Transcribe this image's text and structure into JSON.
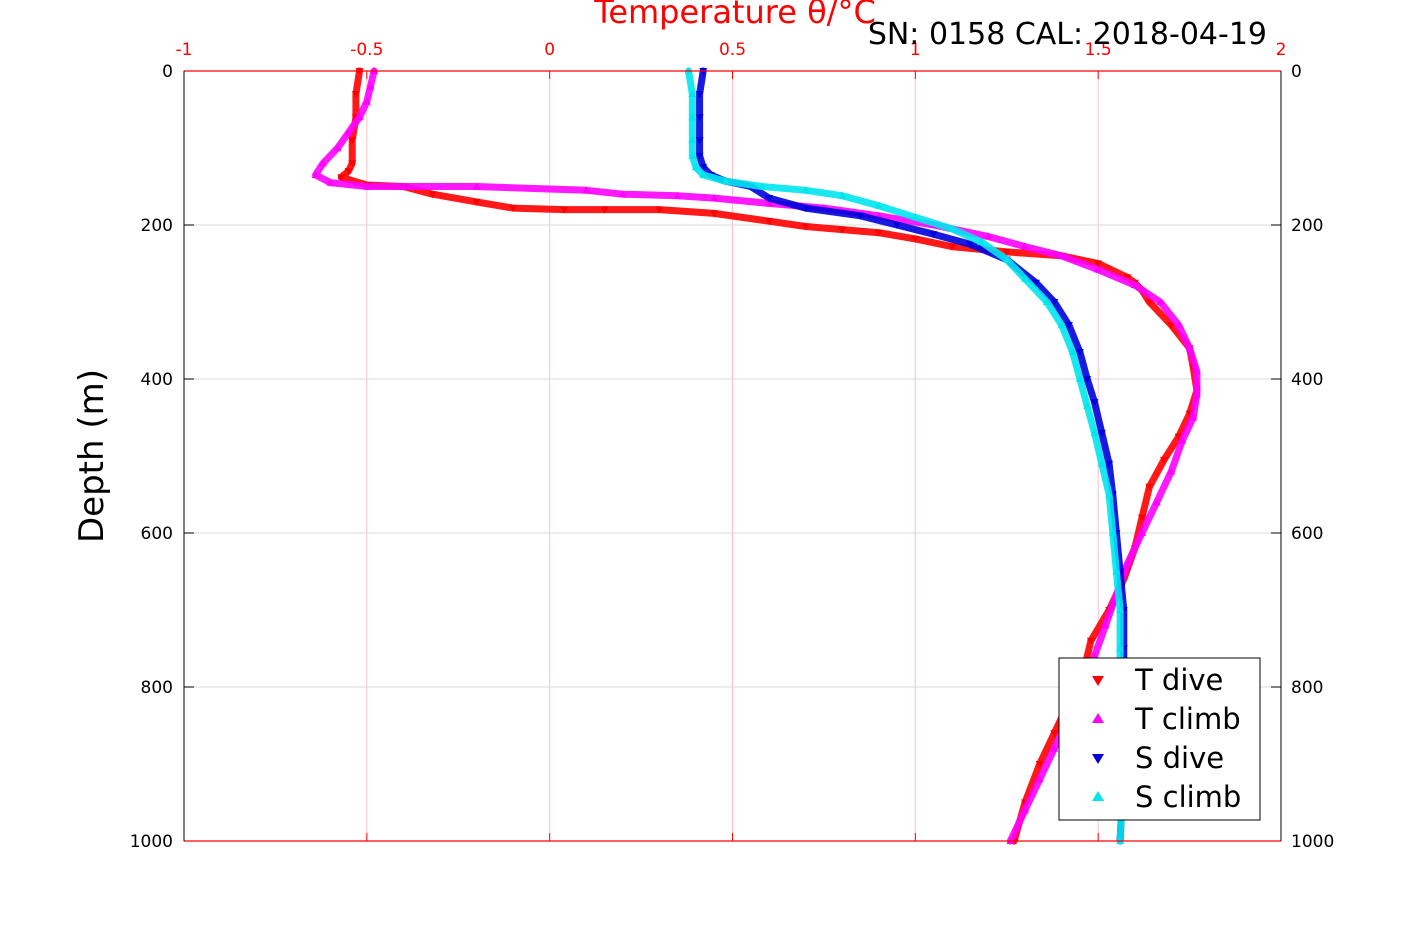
{
  "chart_data": {
    "type": "scatter",
    "title": "",
    "header": "SN: 0158  CAL: 2018-04-19",
    "xlabel": "Temperature θ/°C",
    "ylabel": "Depth (m)",
    "xlim": [
      -1,
      2
    ],
    "ylim": [
      0,
      1000
    ],
    "y_reversed": true,
    "x_ticks": [
      "-1",
      "-0.5",
      "0",
      "0.5",
      "1",
      "1.5",
      "2"
    ],
    "y_ticks": [
      "0",
      "200",
      "400",
      "600",
      "800",
      "1000"
    ],
    "grid": true,
    "legend_position": "bottom-right",
    "colors": {
      "axis_top": "#ff0000",
      "grid": "#ffc0cb",
      "ygrid": "#d9d9d9"
    },
    "series": [
      {
        "name": "T dive",
        "color": "#ff0000",
        "marker": "triangle-down",
        "x": [
          -0.52,
          -0.53,
          -0.53,
          -0.54,
          -0.54,
          -0.55,
          -0.57,
          -0.5,
          -0.4,
          -0.32,
          -0.2,
          -0.1,
          0.04,
          0.15,
          0.3,
          0.45,
          0.6,
          0.7,
          0.8,
          0.9,
          1.0,
          1.1,
          1.25,
          1.4,
          1.5,
          1.58,
          1.6,
          1.62,
          1.64,
          1.7,
          1.75,
          1.76,
          1.77,
          1.75,
          1.72,
          1.68,
          1.64,
          1.62,
          1.6,
          1.57,
          1.53,
          1.48,
          1.46,
          1.42,
          1.38,
          1.34,
          1.3,
          1.27
        ],
        "y": [
          0,
          30,
          60,
          90,
          120,
          130,
          138,
          148,
          150,
          160,
          170,
          178,
          180,
          180,
          180,
          185,
          195,
          202,
          206,
          210,
          218,
          228,
          235,
          240,
          250,
          268,
          275,
          285,
          300,
          330,
          360,
          385,
          415,
          445,
          475,
          505,
          540,
          580,
          620,
          660,
          700,
          740,
          780,
          820,
          860,
          900,
          950,
          1000
        ]
      },
      {
        "name": "T climb",
        "color": "#ff00ff",
        "marker": "triangle-up",
        "x": [
          -0.48,
          -0.49,
          -0.5,
          -0.52,
          -0.55,
          -0.58,
          -0.62,
          -0.64,
          -0.6,
          -0.5,
          -0.2,
          0.1,
          0.2,
          0.35,
          0.45,
          0.6,
          0.75,
          0.9,
          1.05,
          1.2,
          1.3,
          1.4,
          1.5,
          1.6,
          1.67,
          1.72,
          1.75,
          1.77,
          1.77,
          1.76,
          1.73,
          1.7,
          1.66,
          1.62,
          1.58,
          1.55,
          1.52,
          1.49,
          1.46,
          1.42,
          1.38,
          1.34,
          1.3,
          1.26
        ],
        "y": [
          0,
          20,
          40,
          60,
          80,
          100,
          120,
          135,
          145,
          150,
          150,
          155,
          160,
          162,
          165,
          172,
          178,
          188,
          200,
          215,
          228,
          240,
          258,
          278,
          300,
          330,
          360,
          390,
          420,
          450,
          480,
          520,
          560,
          600,
          640,
          680,
          720,
          760,
          800,
          840,
          880,
          920,
          960,
          1000
        ]
      },
      {
        "name": "S dive",
        "color": "#0000dd",
        "marker": "triangle-down",
        "x": [
          0.42,
          0.41,
          0.41,
          0.41,
          0.41,
          0.42,
          0.44,
          0.48,
          0.55,
          0.6,
          0.7,
          0.85,
          0.95,
          1.05,
          1.15,
          1.25,
          1.33,
          1.38,
          1.42,
          1.45,
          1.47,
          1.49,
          1.51,
          1.53,
          1.54,
          1.55,
          1.56,
          1.57,
          1.57,
          1.57,
          1.57,
          1.57,
          1.56
        ],
        "y": [
          0,
          30,
          60,
          90,
          110,
          125,
          135,
          143,
          150,
          165,
          178,
          188,
          200,
          212,
          225,
          245,
          275,
          300,
          330,
          365,
          400,
          430,
          470,
          510,
          550,
          600,
          650,
          700,
          750,
          800,
          850,
          900,
          1000
        ]
      },
      {
        "name": "S climb",
        "color": "#00e5ee",
        "marker": "triangle-up",
        "x": [
          0.38,
          0.39,
          0.39,
          0.39,
          0.39,
          0.4,
          0.42,
          0.48,
          0.58,
          0.7,
          0.8,
          0.9,
          1.0,
          1.1,
          1.18,
          1.25,
          1.3,
          1.36,
          1.4,
          1.43,
          1.45,
          1.47,
          1.49,
          1.51,
          1.53,
          1.54,
          1.55,
          1.56,
          1.56,
          1.56,
          1.57,
          1.57,
          1.56
        ],
        "y": [
          0,
          30,
          60,
          90,
          110,
          125,
          135,
          143,
          150,
          155,
          162,
          175,
          190,
          205,
          222,
          245,
          270,
          300,
          330,
          365,
          400,
          435,
          470,
          510,
          550,
          600,
          650,
          700,
          750,
          800,
          850,
          900,
          1000
        ]
      }
    ]
  }
}
